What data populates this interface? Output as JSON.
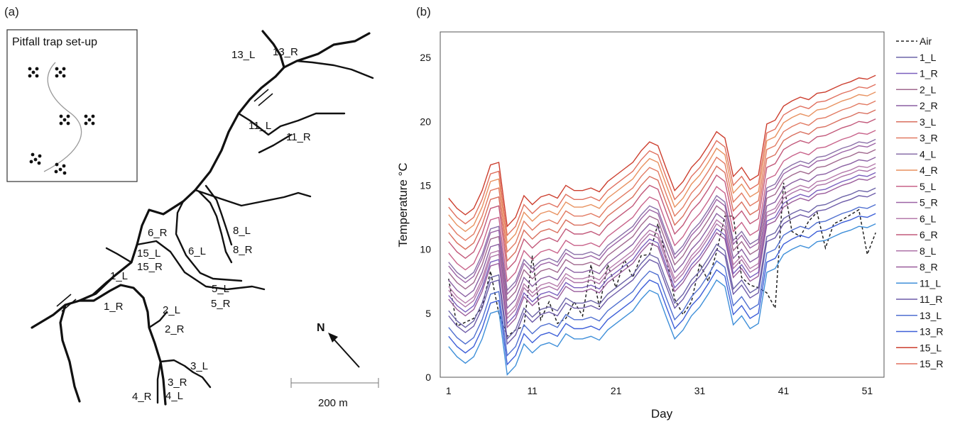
{
  "panel_a": {
    "label": "(a)",
    "inset_title": "Pitfall trap set-up",
    "sites": [
      "13_L",
      "13_R",
      "11_L",
      "11_R",
      "6_R",
      "8_L",
      "8_R",
      "15_L",
      "15_R",
      "6_L",
      "1_L",
      "5_L",
      "5_R",
      "1_R",
      "2_L",
      "2_R",
      "3_L",
      "3_R",
      "4_R",
      "4_L"
    ],
    "north": "N",
    "scale": "200 m"
  },
  "panel_b": {
    "label": "(b)"
  },
  "chart_data": {
    "type": "line",
    "xlabel": "Day",
    "ylabel": "Temperature °C",
    "xlim": [
      0,
      53
    ],
    "ylim": [
      0,
      27
    ],
    "xticks": [
      1,
      11,
      21,
      31,
      41,
      51
    ],
    "yticks": [
      0,
      5,
      10,
      15,
      20,
      25
    ],
    "grid": false,
    "legend_position": "right",
    "days": [
      1,
      2,
      3,
      4,
      5,
      6,
      7,
      8,
      9,
      10,
      11,
      12,
      13,
      14,
      15,
      16,
      17,
      18,
      19,
      20,
      21,
      22,
      23,
      24,
      25,
      26,
      27,
      28,
      29,
      30,
      31,
      32,
      33,
      34,
      35,
      36,
      37,
      38,
      39,
      40,
      41,
      42,
      43,
      44,
      45,
      46,
      47,
      48,
      49,
      50,
      51,
      52
    ],
    "pattern": [
      0,
      -0.8,
      -1.3,
      -0.8,
      0.6,
      2.6,
      2.8,
      -2.2,
      -1.5,
      0.2,
      -0.5,
      0.1,
      0.3,
      0,
      1,
      0.6,
      0.6,
      0.8,
      0.5,
      1.3,
      1.8,
      2.3,
      2.8,
      3.7,
      4.4,
      4.1,
      2.3,
      0.6,
      1.3,
      2.4,
      3.1,
      4.1,
      5.2,
      4.7,
      1.7,
      2.4,
      1.4,
      1.8,
      5.8,
      6.1,
      7.2,
      7.6,
      7.9,
      7.7,
      8.2,
      8.3,
      8.6,
      8.9,
      9.1,
      9.4,
      9.3,
      9.6
    ],
    "series": [
      {
        "name": "Air",
        "color": "#222222",
        "dashed": true,
        "values": [
          7.7,
          4.0,
          4.3,
          4.6,
          5.5,
          8.3,
          5.0,
          3.2,
          3.7,
          4.0,
          9.5,
          4.5,
          5.9,
          4.2,
          4.6,
          5.9,
          4.8,
          8.8,
          5.5,
          8.8,
          7.0,
          9.2,
          7.8,
          9.5,
          9.6,
          12.0,
          9.3,
          6.1,
          4.9,
          5.9,
          8.9,
          7.5,
          9.8,
          12.6,
          12.6,
          7.8,
          7.2,
          7.0,
          6.6,
          5.4,
          15.2,
          11.4,
          11.0,
          12.2,
          12.9,
          10.1,
          12.0,
          12.3,
          12.7,
          13.1,
          9.6,
          11.3
        ]
      },
      {
        "name": "1_L",
        "color": "#6d64a8",
        "offset": 5.2
      },
      {
        "name": "1_R",
        "color": "#7a5fbd",
        "offset": 6.4
      },
      {
        "name": "2_L",
        "color": "#a0688e",
        "offset": 8.2
      },
      {
        "name": "2_R",
        "color": "#8a5fa2",
        "offset": 7.6
      },
      {
        "name": "3_L",
        "color": "#d96f5e",
        "offset": 11.3
      },
      {
        "name": "3_R",
        "color": "#e27a62",
        "offset": 12.0
      },
      {
        "name": "4_L",
        "color": "#8a6fa8",
        "offset": 9.0
      },
      {
        "name": "4_R",
        "color": "#e8915f",
        "offset": 12.7
      },
      {
        "name": "5_L",
        "color": "#c8628a",
        "offset": 9.7
      },
      {
        "name": "5_R",
        "color": "#9b63a5",
        "offset": 8.7
      },
      {
        "name": "6_L",
        "color": "#b57aab",
        "offset": 7.1
      },
      {
        "name": "6_R",
        "color": "#c2587a",
        "offset": 10.6
      },
      {
        "name": "8_L",
        "color": "#ad73a8",
        "offset": 6.8
      },
      {
        "name": "8_R",
        "color": "#9a5c9b",
        "offset": 6.1
      },
      {
        "name": "11_L",
        "color": "#3f8fd9",
        "offset": 2.4
      },
      {
        "name": "11_R",
        "color": "#6c5aa8",
        "offset": 4.8
      },
      {
        "name": "13_L",
        "color": "#4f6fd0",
        "offset": 3.9
      },
      {
        "name": "13_R",
        "color": "#3d5fd8",
        "offset": 3.2
      },
      {
        "name": "15_L",
        "color": "#cc3e2e",
        "offset": 14.0
      },
      {
        "name": "15_R",
        "color": "#e0705e",
        "offset": 13.3
      }
    ]
  }
}
